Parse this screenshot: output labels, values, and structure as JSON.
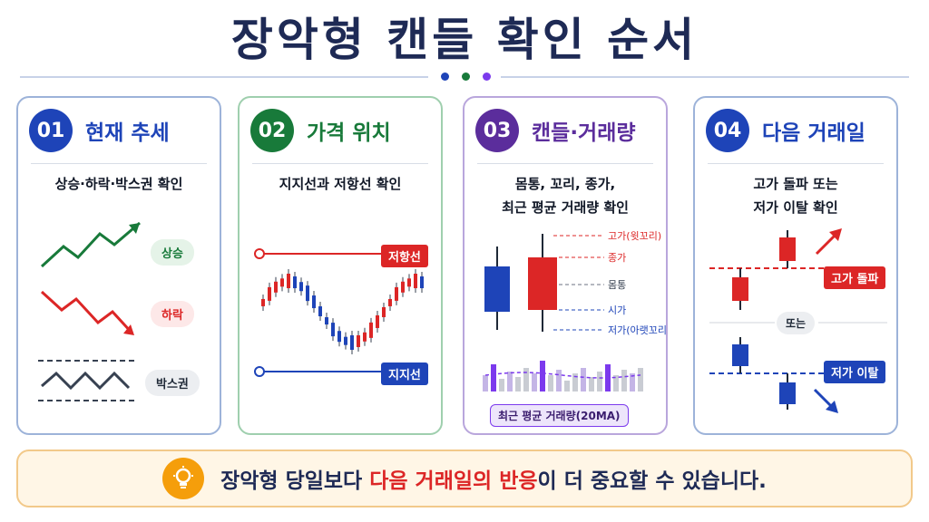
{
  "title": "장악형 캔들 확인 순서",
  "colors": {
    "navy": "#1e2a55",
    "blue": "#1e44b8",
    "green": "#187a3a",
    "purple": "#5b2d9c",
    "red": "#dc2626",
    "orange": "#f59e0b"
  },
  "cards": [
    {
      "num": "01",
      "title": "현재 추세",
      "desc": "상승·하락·박스권 확인",
      "labels": {
        "up": "상승",
        "down": "하락",
        "box": "박스권"
      }
    },
    {
      "num": "02",
      "title": "가격 위치",
      "desc": "지지선과 저항선 확인",
      "labels": {
        "resistance": "저항선",
        "support": "지지선"
      }
    },
    {
      "num": "03",
      "title": "캔들·거래량",
      "desc_line1": "몸통, 꼬리, 종가,",
      "desc_line2": "최근 평균 거래량 확인",
      "labels": {
        "high": "고가(윗꼬리)",
        "close": "종가",
        "body": "몸통",
        "open": "시가",
        "low": "저가(아랫꼬리)",
        "volume": "최근 평균 거래량(20MA)"
      }
    },
    {
      "num": "04",
      "title": "다음 거래일",
      "desc_line1": "고가 돌파 또는",
      "desc_line2": "저가 이탈 확인",
      "labels": {
        "breakout": "고가 돌파",
        "or": "또는",
        "breakdown": "저가 이탈"
      }
    }
  ],
  "footer": {
    "before": "장악형 당일보다 ",
    "highlight": "다음 거래일의 반응",
    "after": "이 더 중요할 수 있습니다."
  }
}
